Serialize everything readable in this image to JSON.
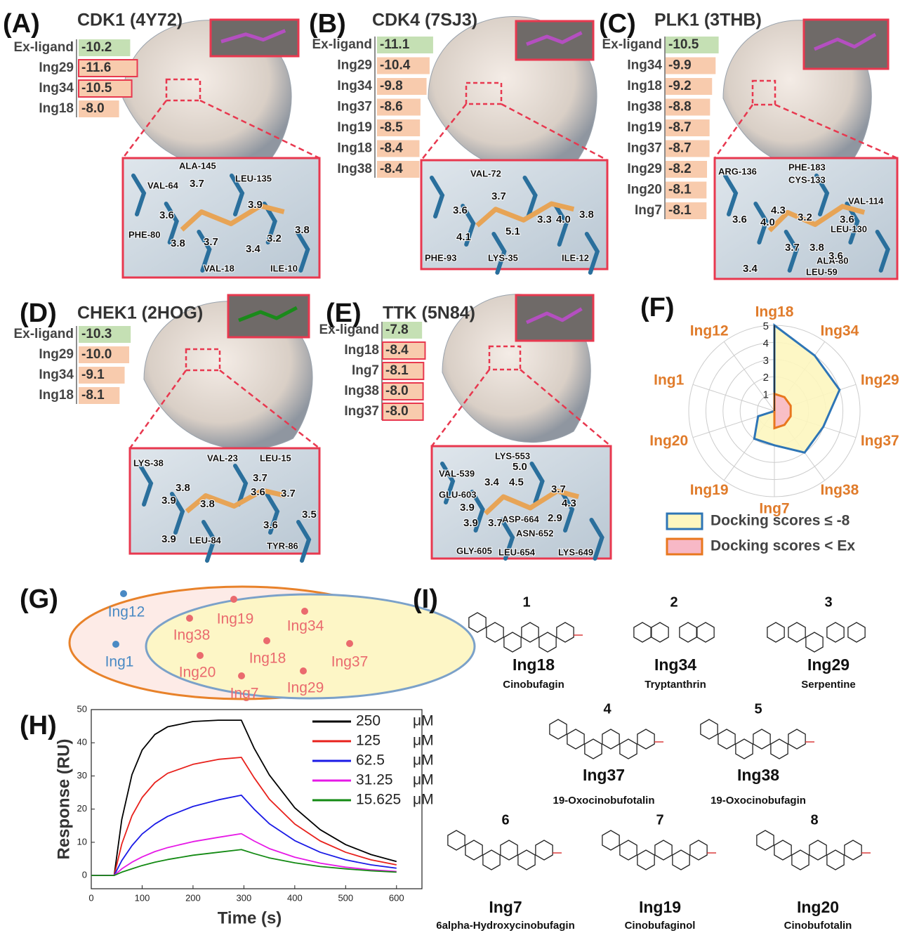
{
  "docking": [
    {
      "letter": "(A)",
      "title": "CDK1 (4Y72)",
      "scores": [
        {
          "ligand": "Ex-ligand",
          "score": -10.2
        },
        {
          "ligand": "Ing29",
          "score": -11.6
        },
        {
          "ligand": "Ing34",
          "score": -10.5
        },
        {
          "ligand": "Ing18",
          "score": -8,
          "label": "-8.0"
        }
      ],
      "residues": [
        "ALA-145",
        "LEU-135",
        "VAL-64",
        "PHE-80",
        "VAL-18",
        "ILE-10"
      ],
      "distances": [
        "3.7",
        "3.9",
        "3.6",
        "3.8",
        "3.7",
        "3.4",
        "3.2",
        "3.8"
      ]
    },
    {
      "letter": "(B)",
      "title": "CDK4 (7SJ3)",
      "scores": [
        {
          "ligand": "Ex-ligand",
          "score": -11.1
        },
        {
          "ligand": "Ing29",
          "score": -10.4
        },
        {
          "ligand": "Ing34",
          "score": -9.8
        },
        {
          "ligand": "Ing37",
          "score": -8.6
        },
        {
          "ligand": "Ing19",
          "score": -8.5
        },
        {
          "ligand": "Ing18",
          "score": -8.4
        },
        {
          "ligand": "Ing38",
          "score": -8.4
        }
      ],
      "residues": [
        "VAL-72",
        "PHE-93",
        "LYS-35",
        "ILE-12"
      ],
      "distances": [
        "3.7",
        "3.6",
        "3.3",
        "4.0",
        "3.8",
        "4.1",
        "5.1"
      ]
    },
    {
      "letter": "(C)",
      "title": "PLK1 (3THB)",
      "scores": [
        {
          "ligand": "Ex-ligand",
          "score": -10.5
        },
        {
          "ligand": "Ing34",
          "score": -9.9
        },
        {
          "ligand": "Ing18",
          "score": -9.2
        },
        {
          "ligand": "Ing38",
          "score": -8.8
        },
        {
          "ligand": "Ing19",
          "score": -8.7
        },
        {
          "ligand": "Ing37",
          "score": -8.7
        },
        {
          "ligand": "Ing29",
          "score": -8.2
        },
        {
          "ligand": "Ing20",
          "score": -8.1
        },
        {
          "ligand": "Ing7",
          "score": -8.1
        }
      ],
      "residues": [
        "ARG-136",
        "PHE-183",
        "CYS-133",
        "VAL-114",
        "LEU-130",
        "ALA-80",
        "LEU-59"
      ],
      "distances": [
        "4.3",
        "3.6",
        "4.0",
        "3.2",
        "3.6",
        "3.6",
        "3.4",
        "3.7",
        "3.8"
      ]
    },
    {
      "letter": "(D)",
      "title": "CHEK1 (2HOG)",
      "scores": [
        {
          "ligand": "Ex-ligand",
          "score": -10.3
        },
        {
          "ligand": "Ing29",
          "score": -10,
          "label": "-10.0"
        },
        {
          "ligand": "Ing34",
          "score": -9.1
        },
        {
          "ligand": "Ing18",
          "score": -8.1
        }
      ],
      "residues": [
        "LYS-38",
        "VAL-23",
        "LEU-15",
        "LEU-84",
        "TYR-86"
      ],
      "distances": [
        "3.8",
        "3.7",
        "3.6",
        "3.7",
        "3.9",
        "3.8",
        "3.5",
        "3.6",
        "3.9"
      ]
    },
    {
      "letter": "(E)",
      "title": "TTK (5N84)",
      "scores": [
        {
          "ligand": "Ex-ligand",
          "score": -7.8
        },
        {
          "ligand": "Ing18",
          "score": -8.4
        },
        {
          "ligand": "Ing7",
          "score": -8.1
        },
        {
          "ligand": "Ing38",
          "score": -8,
          "label": "-8.0"
        },
        {
          "ligand": "Ing37",
          "score": -8,
          "label": "-8.0"
        }
      ],
      "residues": [
        "LYS-553",
        "VAL-539",
        "GLU-603",
        "ASP-664",
        "ASN-652",
        "GLY-605",
        "LEU-654",
        "LYS-649"
      ],
      "distances": [
        "5.0",
        "3.4",
        "4.5",
        "3.7",
        "3.9",
        "4.3",
        "3.9",
        "3.7",
        "2.9"
      ]
    }
  ],
  "chart_data": [
    {
      "type": "radar",
      "panel_label": "(F)",
      "categories": [
        "Ing18",
        "Ing34",
        "Ing29",
        "Ing37",
        "Ing38",
        "Ing7",
        "Ing19",
        "Ing20",
        "Ing1",
        "Ing12"
      ],
      "rlim": [
        0,
        5
      ],
      "rticks": [
        1,
        2,
        3,
        4,
        5
      ],
      "grid": true,
      "series": [
        {
          "name": "Docking scores ≤ -8",
          "color": "#2e75b6",
          "fill": "#fdf6bf",
          "values": [
            5,
            4,
            4,
            3,
            3,
            2,
            2,
            1,
            0,
            0
          ]
        },
        {
          "name": "Docking scores < Ex",
          "color": "#e8771e",
          "fill": "#f7b8c6",
          "values": [
            1,
            1,
            1,
            1,
            1,
            1,
            0,
            0,
            0,
            0
          ]
        }
      ]
    },
    {
      "type": "line",
      "panel_label": "(H)",
      "xlabel": "Time (s)",
      "ylabel": "Response (RU)",
      "legend_unit": "μM",
      "x": [
        0,
        45,
        60,
        80,
        100,
        125,
        150,
        200,
        250,
        295,
        320,
        350,
        400,
        450,
        500,
        550,
        600
      ],
      "xlim": [
        0,
        650
      ],
      "xticks": [
        0,
        100,
        200,
        300,
        400,
        500,
        600
      ],
      "ylim": [
        -4,
        50
      ],
      "yticks": [
        0,
        10,
        20,
        30,
        40,
        50
      ],
      "series": [
        {
          "name": "250",
          "color": "#000000",
          "values": [
            0,
            0,
            16.9,
            30.4,
            37.8,
            42.5,
            44.8,
            46.4,
            46.8,
            46.8,
            38.4,
            30.3,
            20.4,
            13.8,
            9.3,
            6.3,
            4.2
          ]
        },
        {
          "name": "125",
          "color": "#e8211c",
          "values": [
            0,
            0,
            9.5,
            18,
            23.5,
            28,
            30.8,
            33.5,
            35,
            35.6,
            29.5,
            23,
            15.5,
            10.4,
            7,
            4.7,
            3.2
          ]
        },
        {
          "name": "62.5",
          "color": "#1a1ae6",
          "values": [
            0,
            0,
            4.5,
            9,
            12.5,
            15.5,
            17.8,
            20.8,
            22.8,
            24.2,
            20,
            15.6,
            10.5,
            7,
            4.7,
            3.2,
            2.2
          ]
        },
        {
          "name": "31.25",
          "color": "#e619e6",
          "values": [
            0,
            0,
            2,
            4,
            5.6,
            7.2,
            8.4,
            10.2,
            11.5,
            12.6,
            10.4,
            8.1,
            5.5,
            3.7,
            2.5,
            1.7,
            1.2
          ]
        },
        {
          "name": "15.625",
          "color": "#138a13",
          "values": [
            0,
            0,
            1,
            2,
            3,
            4,
            4.8,
            6.1,
            7,
            7.8,
            6.6,
            5.3,
            3.8,
            2.7,
            2,
            1.4,
            1
          ]
        }
      ]
    }
  ],
  "venn": {
    "letter": "(G)",
    "outer_only": [
      "Ing12",
      "Ing1"
    ],
    "inner": [
      "Ing19",
      "Ing38",
      "Ing34",
      "Ing18",
      "Ing37",
      "Ing20",
      "Ing7",
      "Ing29"
    ]
  },
  "structures": {
    "letter": "(I)",
    "items": [
      {
        "number": "1",
        "code": "Ing18",
        "name": "Cinobufagin"
      },
      {
        "number": "2",
        "code": "Ing34",
        "name": "Tryptanthrin"
      },
      {
        "number": "3",
        "code": "Ing29",
        "name": "Serpentine"
      },
      {
        "number": "4",
        "code": "Ing37",
        "name": "19-Oxocinobufotalin"
      },
      {
        "number": "5",
        "code": "Ing38",
        "name": "19-Oxocinobufagin"
      },
      {
        "number": "6",
        "code": "Ing7",
        "name": "6alpha-Hydroxycinobufagin"
      },
      {
        "number": "7",
        "code": "Ing19",
        "name": "Cinobufaginol"
      },
      {
        "number": "8",
        "code": "Ing20",
        "name": "Cinobufotalin"
      }
    ]
  }
}
